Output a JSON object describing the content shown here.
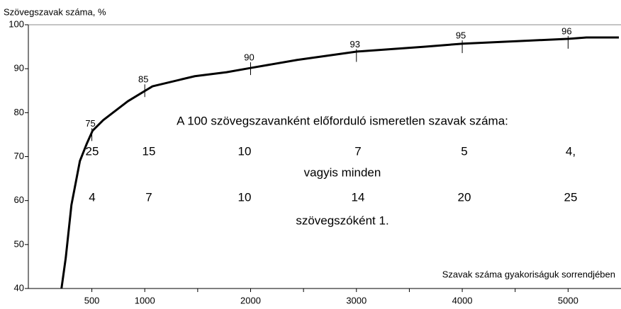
{
  "chart_data": {
    "type": "line",
    "y_label": "Szövegszavak száma, %",
    "x_label": "Szavak száma gyakoriságuk sorrendjében",
    "x": [
      213,
      253,
      307,
      387,
      453,
      507,
      607,
      840,
      1073,
      1473,
      1773,
      2007,
      2440,
      3007,
      3640,
      4007,
      4640,
      5007,
      5173,
      5480
    ],
    "series": [
      {
        "color": "#000000",
        "values": [
          40,
          46.9,
          59,
          69,
          73,
          75.9,
          78.3,
          82.6,
          86,
          88.3,
          89.2,
          90.2,
          92,
          93.9,
          95,
          95.7,
          96.4,
          96.8,
          97.1,
          97.1
        ]
      }
    ],
    "marked_points": {
      "x": [
        500,
        1000,
        2000,
        3000,
        4000,
        5000
      ],
      "y": [
        75,
        85,
        90,
        93,
        95,
        96
      ]
    },
    "xlim": [
      -100,
      5500
    ],
    "xticks": [
      500,
      1000,
      2000,
      3000,
      4000,
      5000
    ],
    "xminorticks": [
      1500,
      2500,
      3500,
      4500
    ],
    "ylim": [
      40,
      100
    ],
    "yticks": [
      40,
      50,
      60,
      70,
      80,
      90,
      100
    ],
    "annotations": {
      "heading": "A 100 szövegszavanként előforduló ismeretlen szavak száma:",
      "row1": [
        "25",
        "15",
        "10",
        "7",
        "5",
        "4,"
      ],
      "middle": "vagyis minden",
      "row2": [
        "4",
        "7",
        "10",
        "14",
        "20",
        "25"
      ],
      "footer": "szövegszóként 1."
    }
  }
}
